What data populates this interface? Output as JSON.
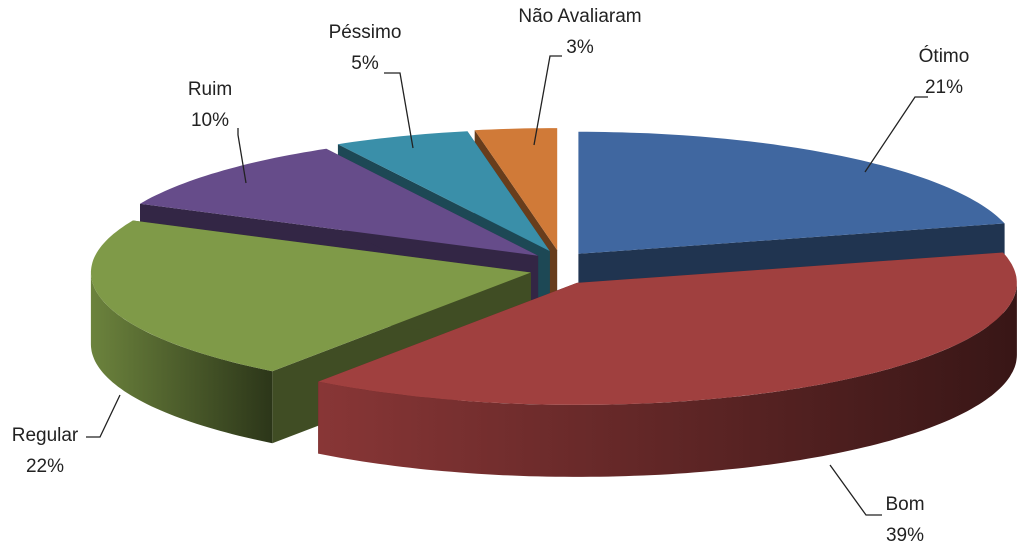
{
  "chart_data": {
    "type": "pie3d",
    "categories": [
      "Ótimo",
      "Bom",
      "Regular",
      "Ruim",
      "Péssimo",
      "Não Avaliaram"
    ],
    "values": [
      21,
      39,
      22,
      10,
      5,
      3
    ],
    "value_labels": [
      "21%",
      "39%",
      "22%",
      "10%",
      "5%",
      "3%"
    ],
    "colors": [
      "#4067a0",
      "#a0403f",
      "#7f9a48",
      "#664c8a",
      "#3a8fa9",
      "#d07a38"
    ]
  }
}
